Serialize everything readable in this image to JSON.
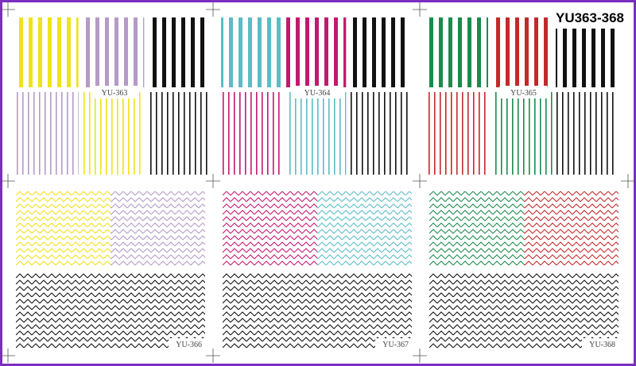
{
  "title": "YU363-368",
  "panels": [
    {
      "label": "YU-363"
    },
    {
      "label": "YU-364"
    },
    {
      "label": "YU-365"
    },
    {
      "label": "YU-366"
    },
    {
      "label": "YU-367"
    },
    {
      "label": "YU-368"
    }
  ]
}
